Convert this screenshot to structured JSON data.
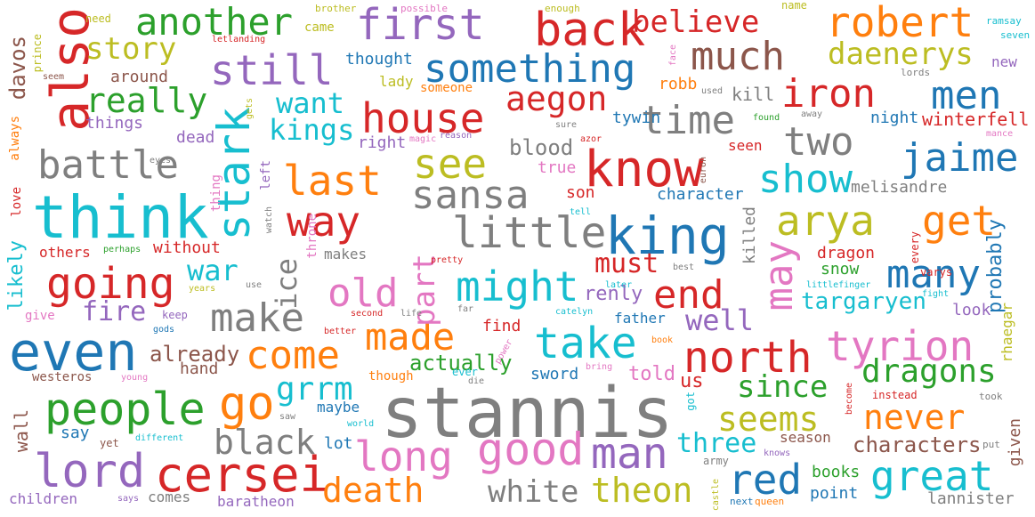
{
  "palette": {
    "blue": "#1f77b4",
    "orange": "#ff7f0e",
    "green": "#2ca02c",
    "red": "#d62728",
    "purple": "#9467bd",
    "brown": "#8c564b",
    "pink": "#e377c2",
    "gray": "#7f7f7f",
    "olive": "#bcbd22",
    "cyan": "#17becf"
  },
  "words": [
    {
      "text": "stannis",
      "color": "gray"
    },
    {
      "text": "think",
      "color": "cyan"
    },
    {
      "text": "know",
      "color": "red"
    },
    {
      "text": "king",
      "color": "blue"
    },
    {
      "text": "also",
      "color": "red"
    },
    {
      "text": "even",
      "color": "blue"
    },
    {
      "text": "first",
      "color": "purple"
    },
    {
      "text": "back",
      "color": "red"
    },
    {
      "text": "lord",
      "color": "purple"
    },
    {
      "text": "cersei",
      "color": "red"
    },
    {
      "text": "people",
      "color": "green"
    },
    {
      "text": "stark",
      "color": "cyan"
    },
    {
      "text": "little",
      "color": "gray"
    },
    {
      "text": "sansa",
      "color": "gray"
    },
    {
      "text": "go",
      "color": "orange"
    },
    {
      "text": "going",
      "color": "red"
    },
    {
      "text": "good",
      "color": "pink"
    },
    {
      "text": "man",
      "color": "purple"
    },
    {
      "text": "long",
      "color": "pink"
    },
    {
      "text": "make",
      "color": "gray"
    },
    {
      "text": "take",
      "color": "cyan"
    },
    {
      "text": "might",
      "color": "cyan"
    },
    {
      "text": "north",
      "color": "red"
    },
    {
      "text": "tyrion",
      "color": "pink"
    },
    {
      "text": "great",
      "color": "cyan"
    },
    {
      "text": "red",
      "color": "blue"
    },
    {
      "text": "see",
      "color": "olive"
    },
    {
      "text": "way",
      "color": "red"
    },
    {
      "text": "last",
      "color": "orange"
    },
    {
      "text": "house",
      "color": "red"
    },
    {
      "text": "something",
      "color": "blue"
    },
    {
      "text": "still",
      "color": "purple"
    },
    {
      "text": "another",
      "color": "green"
    },
    {
      "text": "robert",
      "color": "orange"
    },
    {
      "text": "much",
      "color": "brown"
    },
    {
      "text": "time",
      "color": "gray"
    },
    {
      "text": "iron",
      "color": "red"
    },
    {
      "text": "men",
      "color": "blue"
    },
    {
      "text": "two",
      "color": "gray"
    },
    {
      "text": "jaime",
      "color": "blue"
    },
    {
      "text": "show",
      "color": "cyan"
    },
    {
      "text": "get",
      "color": "orange"
    },
    {
      "text": "arya",
      "color": "olive"
    },
    {
      "text": "may",
      "color": "pink"
    },
    {
      "text": "many",
      "color": "blue"
    },
    {
      "text": "end",
      "color": "red"
    },
    {
      "text": "old",
      "color": "pink"
    },
    {
      "text": "made",
      "color": "orange"
    },
    {
      "text": "come",
      "color": "orange"
    },
    {
      "text": "battle",
      "color": "gray"
    },
    {
      "text": "really",
      "color": "green"
    },
    {
      "text": "aegon",
      "color": "red"
    },
    {
      "text": "believe",
      "color": "red"
    },
    {
      "text": "daenerys",
      "color": "olive"
    },
    {
      "text": "story",
      "color": "olive"
    },
    {
      "text": "death",
      "color": "orange"
    },
    {
      "text": "white",
      "color": "gray"
    },
    {
      "text": "theon",
      "color": "olive"
    },
    {
      "text": "black",
      "color": "gray"
    },
    {
      "text": "never",
      "color": "orange"
    },
    {
      "text": "seems",
      "color": "olive"
    },
    {
      "text": "dragons",
      "color": "green"
    },
    {
      "text": "since",
      "color": "green"
    },
    {
      "text": "grrm",
      "color": "cyan"
    },
    {
      "text": "three",
      "color": "cyan"
    },
    {
      "text": "want",
      "color": "cyan"
    },
    {
      "text": "kings",
      "color": "cyan"
    },
    {
      "text": "war",
      "color": "cyan"
    },
    {
      "text": "fire",
      "color": "purple"
    },
    {
      "text": "part",
      "color": "pink"
    },
    {
      "text": "must",
      "color": "red"
    },
    {
      "text": "well",
      "color": "purple"
    },
    {
      "text": "targaryen",
      "color": "cyan"
    },
    {
      "text": "ice",
      "color": "gray"
    },
    {
      "text": "characters",
      "color": "brown"
    },
    {
      "text": "davos",
      "color": "brown"
    },
    {
      "text": "melisandre",
      "color": "gray"
    },
    {
      "text": "probably",
      "color": "blue"
    },
    {
      "text": "blood",
      "color": "gray"
    },
    {
      "text": "actually",
      "color": "green"
    },
    {
      "text": "already",
      "color": "brown"
    },
    {
      "text": "renly",
      "color": "purple"
    },
    {
      "text": "winterfell",
      "color": "red"
    },
    {
      "text": "character",
      "color": "blue"
    },
    {
      "text": "around",
      "color": "brown"
    },
    {
      "text": "thought",
      "color": "blue"
    },
    {
      "text": "tywin",
      "color": "blue"
    },
    {
      "text": "likely",
      "color": "cyan"
    },
    {
      "text": "snow",
      "color": "green"
    },
    {
      "text": "dragon",
      "color": "red"
    },
    {
      "text": "killed",
      "color": "gray"
    },
    {
      "text": "rhaegar",
      "color": "olive"
    },
    {
      "text": "night",
      "color": "blue"
    },
    {
      "text": "kill",
      "color": "gray"
    },
    {
      "text": "robb",
      "color": "orange"
    },
    {
      "text": "things",
      "color": "purple"
    },
    {
      "text": "dead",
      "color": "purple"
    },
    {
      "text": "right",
      "color": "purple"
    },
    {
      "text": "wall",
      "color": "brown"
    },
    {
      "text": "sword",
      "color": "blue"
    },
    {
      "text": "told",
      "color": "pink"
    },
    {
      "text": "us",
      "color": "red"
    },
    {
      "text": "son",
      "color": "red"
    },
    {
      "text": "true",
      "color": "pink"
    },
    {
      "text": "lot",
      "color": "blue"
    },
    {
      "text": "maybe",
      "color": "blue"
    },
    {
      "text": "say",
      "color": "blue"
    },
    {
      "text": "books",
      "color": "green"
    },
    {
      "text": "point",
      "color": "blue"
    },
    {
      "text": "season",
      "color": "brown"
    },
    {
      "text": "lannister",
      "color": "gray"
    },
    {
      "text": "given",
      "color": "brown"
    },
    {
      "text": "hand",
      "color": "brown"
    },
    {
      "text": "others",
      "color": "red"
    },
    {
      "text": "without",
      "color": "red"
    },
    {
      "text": "find",
      "color": "red"
    },
    {
      "text": "father",
      "color": "blue"
    },
    {
      "text": "look",
      "color": "purple"
    },
    {
      "text": "children",
      "color": "purple"
    },
    {
      "text": "comes",
      "color": "gray"
    },
    {
      "text": "baratheon",
      "color": "purple"
    },
    {
      "text": "westeros",
      "color": "brown"
    },
    {
      "text": "makes",
      "color": "gray"
    },
    {
      "text": "seen",
      "color": "red"
    },
    {
      "text": "lady",
      "color": "olive"
    },
    {
      "text": "someone",
      "color": "orange"
    },
    {
      "text": "new",
      "color": "purple"
    },
    {
      "text": "came",
      "color": "olive"
    },
    {
      "text": "need",
      "color": "olive"
    },
    {
      "text": "name",
      "color": "olive"
    },
    {
      "text": "prince",
      "color": "olive"
    },
    {
      "text": "always",
      "color": "orange"
    },
    {
      "text": "love",
      "color": "red"
    },
    {
      "text": "give",
      "color": "pink"
    },
    {
      "text": "keep",
      "color": "purple"
    },
    {
      "text": "though",
      "color": "orange"
    },
    {
      "text": "every",
      "color": "red"
    },
    {
      "text": "ramsay",
      "color": "cyan"
    },
    {
      "text": "seven",
      "color": "cyan"
    },
    {
      "text": "lords",
      "color": "gray"
    },
    {
      "text": "used",
      "color": "gray"
    },
    {
      "text": "found",
      "color": "green"
    },
    {
      "text": "away",
      "color": "gray"
    },
    {
      "text": "mance",
      "color": "pink"
    },
    {
      "text": "varys",
      "color": "red"
    },
    {
      "text": "littlefinger",
      "color": "cyan"
    },
    {
      "text": "fight",
      "color": "cyan"
    },
    {
      "text": "instead",
      "color": "red"
    },
    {
      "text": "took",
      "color": "gray"
    },
    {
      "text": "put",
      "color": "gray"
    },
    {
      "text": "knows",
      "color": "purple"
    },
    {
      "text": "army",
      "color": "gray"
    },
    {
      "text": "next",
      "color": "blue"
    },
    {
      "text": "queen",
      "color": "orange"
    },
    {
      "text": "castle",
      "color": "olive"
    },
    {
      "text": "become",
      "color": "red"
    },
    {
      "text": "bring",
      "color": "pink"
    },
    {
      "text": "book",
      "color": "orange"
    },
    {
      "text": "ever",
      "color": "cyan"
    },
    {
      "text": "die",
      "color": "gray"
    },
    {
      "text": "power",
      "color": "pink"
    },
    {
      "text": "better",
      "color": "red"
    },
    {
      "text": "second",
      "color": "red"
    },
    {
      "text": "life",
      "color": "gray"
    },
    {
      "text": "far",
      "color": "gray"
    },
    {
      "text": "catelyn",
      "color": "cyan"
    },
    {
      "text": "pretty",
      "color": "red"
    },
    {
      "text": "later",
      "color": "cyan"
    },
    {
      "text": "best",
      "color": "gray"
    },
    {
      "text": "tell",
      "color": "cyan"
    },
    {
      "text": "euron",
      "color": "brown"
    },
    {
      "text": "azor",
      "color": "red"
    },
    {
      "text": "reason",
      "color": "purple"
    },
    {
      "text": "magic",
      "color": "pink"
    },
    {
      "text": "sure",
      "color": "gray"
    },
    {
      "text": "face",
      "color": "pink"
    },
    {
      "text": "brother",
      "color": "olive"
    },
    {
      "text": "possible",
      "color": "pink"
    },
    {
      "text": "enough",
      "color": "olive"
    },
    {
      "text": "letlanding",
      "color": "red"
    },
    {
      "text": "seem",
      "color": "brown"
    },
    {
      "text": "gets",
      "color": "olive"
    },
    {
      "text": "eyes",
      "color": "gray"
    },
    {
      "text": "perhaps",
      "color": "green"
    },
    {
      "text": "thing",
      "color": "pink"
    },
    {
      "text": "watch",
      "color": "gray"
    },
    {
      "text": "left",
      "color": "purple"
    },
    {
      "text": "throne",
      "color": "pink"
    },
    {
      "text": "use",
      "color": "gray"
    },
    {
      "text": "years",
      "color": "olive"
    },
    {
      "text": "gods",
      "color": "blue"
    },
    {
      "text": "young",
      "color": "pink"
    },
    {
      "text": "different",
      "color": "cyan"
    },
    {
      "text": "yet",
      "color": "brown"
    },
    {
      "text": "saw",
      "color": "gray"
    },
    {
      "text": "world",
      "color": "cyan"
    },
    {
      "text": "says",
      "color": "purple"
    },
    {
      "text": "got",
      "color": "cyan"
    }
  ]
}
